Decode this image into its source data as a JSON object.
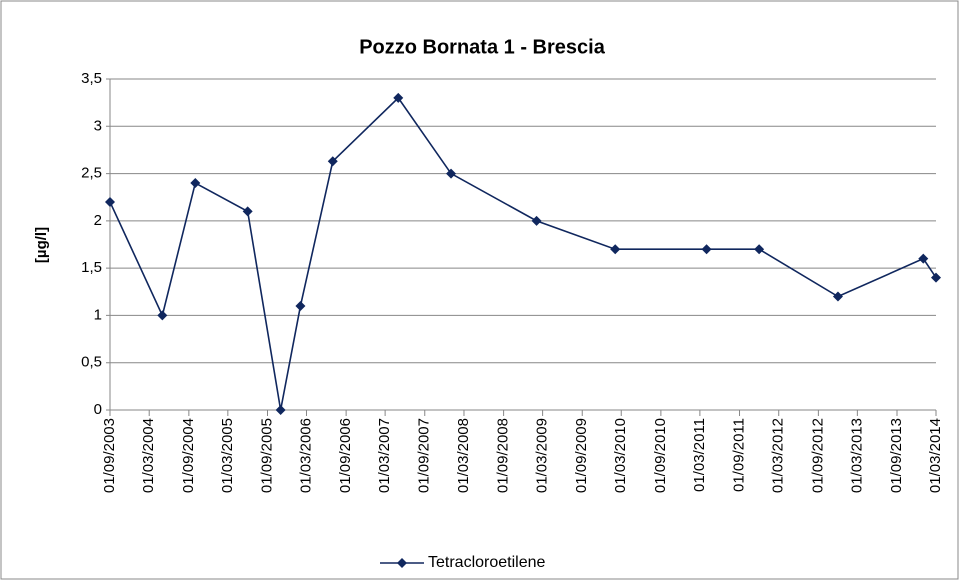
{
  "chart_data": {
    "type": "line",
    "title": "Pozzo Bornata 1 - Brescia",
    "y_label": "[µg/l]",
    "x": [
      "01/09/2003",
      "01/05/2004",
      "01/10/2004",
      "01/06/2005",
      "01/11/2005",
      "01/02/2006",
      "01/07/2006",
      "01/05/2007",
      "01/01/2008",
      "01/02/2009",
      "01/02/2010",
      "01/04/2011",
      "01/12/2011",
      "01/12/2012",
      "01/01/2014",
      "01/03/2014"
    ],
    "series": [
      {
        "name": "Tetracloroetilene",
        "color": "#10275e",
        "values": [
          2.2,
          1.0,
          2.4,
          2.1,
          0,
          1.1,
          2.63,
          3.3,
          2.5,
          2.0,
          1.7,
          1.7,
          1.7,
          1.2,
          1.6,
          1.4
        ]
      }
    ],
    "xlim": [
      "01/09/2003",
      "01/03/2014"
    ],
    "xticks": [
      "01/09/2003",
      "01/03/2004",
      "01/09/2004",
      "01/03/2005",
      "01/09/2005",
      "01/03/2006",
      "01/09/2006",
      "01/03/2007",
      "01/09/2007",
      "01/03/2008",
      "01/09/2008",
      "01/03/2009",
      "01/09/2009",
      "01/03/2010",
      "01/09/2010",
      "01/03/2011",
      "01/09/2011",
      "01/03/2012",
      "01/09/2012",
      "01/03/2013",
      "01/09/2013",
      "01/03/2014"
    ],
    "ylim": [
      0,
      3.5
    ],
    "yticks": [
      0,
      {
        "value": 0.5,
        "label": "0,5"
      },
      1,
      {
        "value": 1.5,
        "label": "1,5"
      },
      2,
      {
        "value": 2.5,
        "label": "2,5"
      },
      3,
      {
        "value": 3.5,
        "label": "3,5"
      }
    ],
    "grid": true,
    "legend": "bottom"
  }
}
